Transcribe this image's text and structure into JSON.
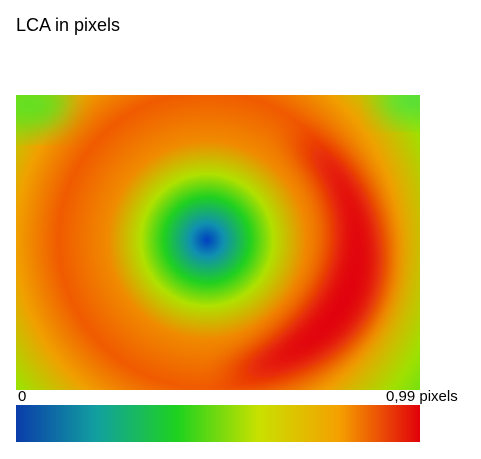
{
  "chart_data": {
    "type": "heatmap",
    "title": "LCA in pixels",
    "colorbar": {
      "lim": [
        0,
        0.99
      ],
      "ticks": [
        0,
        {
          "value": 0.99,
          "label": "0,99 pixels"
        }
      ],
      "colors": [
        "#0a3caa",
        "#12a0a0",
        "#1ed21e",
        "#c8e100",
        "#f5a000",
        "#e1000a"
      ]
    }
  }
}
